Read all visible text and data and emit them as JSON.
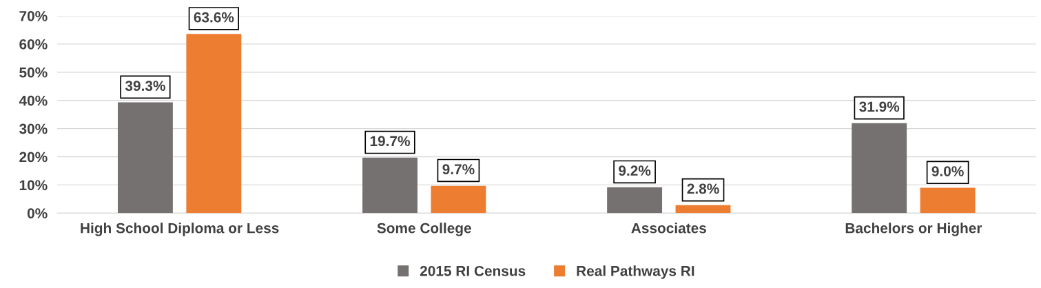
{
  "chart_data": {
    "type": "bar",
    "categories": [
      "High School Diploma or Less",
      "Some College",
      "Associates",
      "Bachelors or Higher"
    ],
    "series": [
      {
        "name": "2015 RI Census",
        "color": "#767171",
        "values": [
          39.3,
          19.7,
          9.2,
          31.9
        ],
        "value_labels": [
          "39.3%",
          "19.7%",
          "9.2%",
          "31.9%"
        ]
      },
      {
        "name": "Real Pathways RI",
        "color": "#ed7d31",
        "values": [
          63.6,
          9.7,
          2.8,
          9.0
        ],
        "value_labels": [
          "63.6%",
          "9.7%",
          "2.8%",
          "9.0%"
        ]
      }
    ],
    "ylim": [
      0,
      70
    ],
    "yticks": [
      {
        "value": 0,
        "label": "0%"
      },
      {
        "value": 10,
        "label": "10%"
      },
      {
        "value": 20,
        "label": "20%"
      },
      {
        "value": 30,
        "label": "30%"
      },
      {
        "value": 40,
        "label": "40%"
      },
      {
        "value": 50,
        "label": "50%"
      },
      {
        "value": 60,
        "label": "60%"
      },
      {
        "value": 70,
        "label": "70%"
      }
    ],
    "grid": "y",
    "legend": "bottom"
  }
}
